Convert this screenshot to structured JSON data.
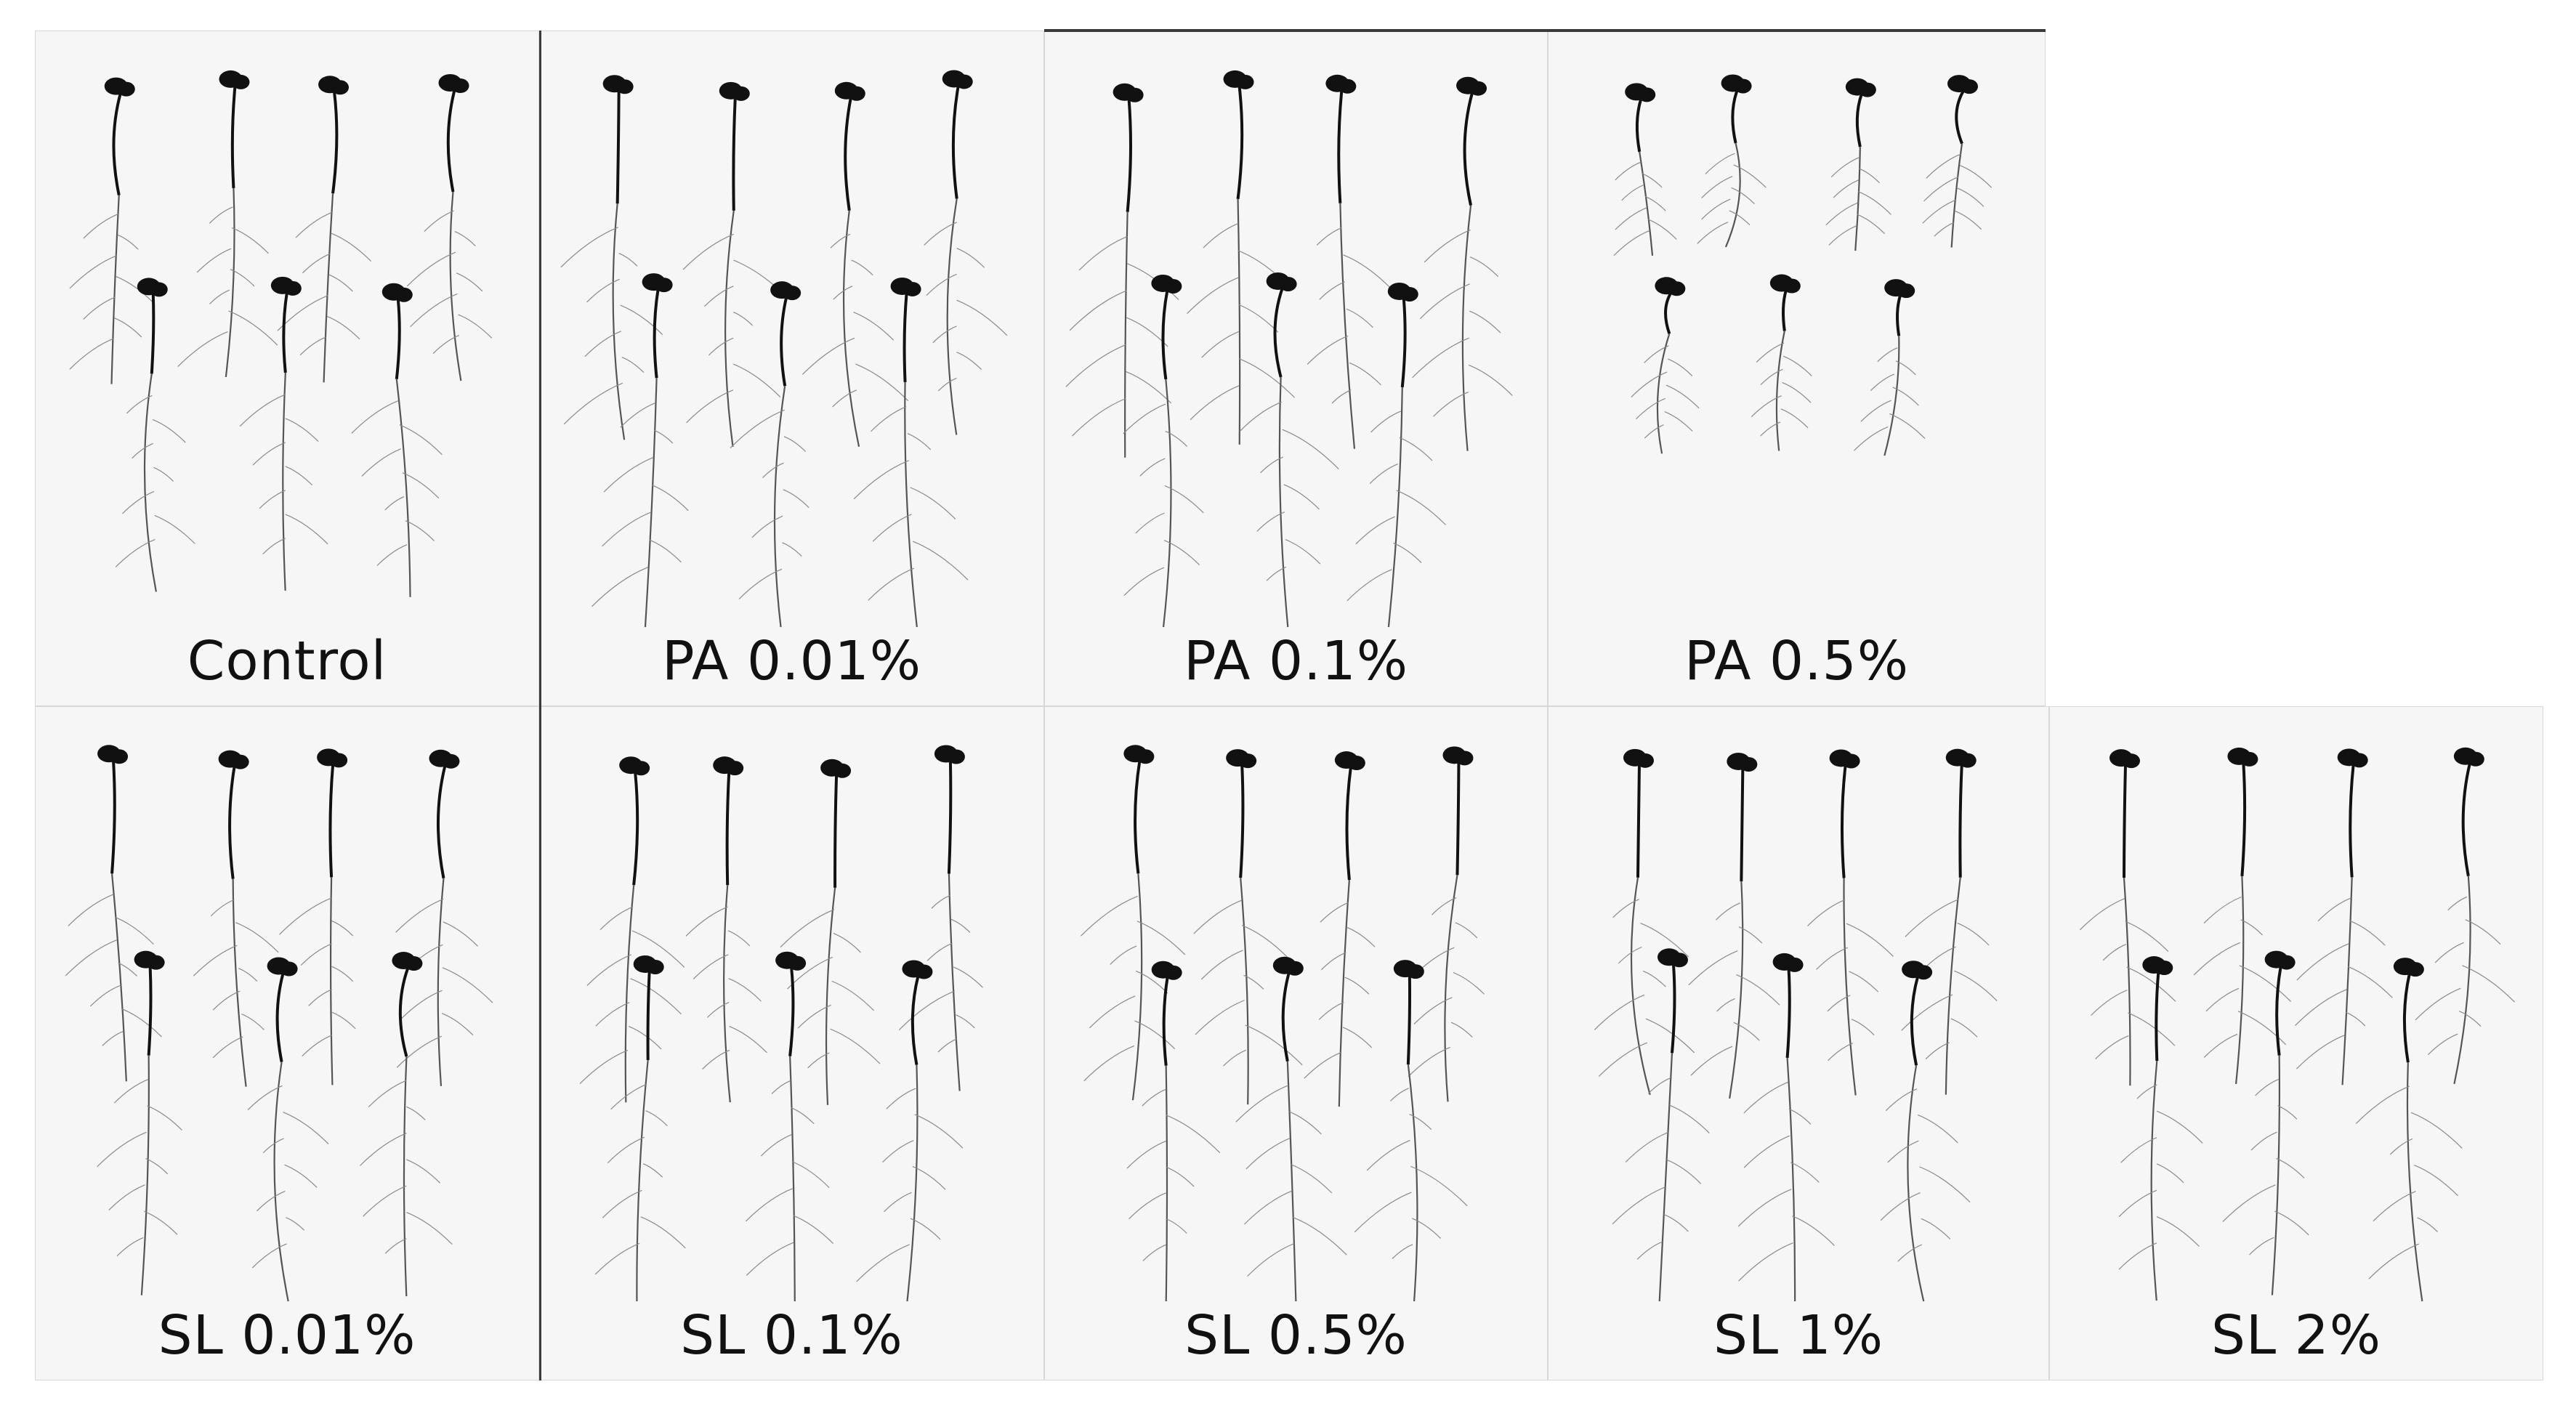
{
  "figure": {
    "rows": [
      {
        "panels": [
          {
            "id": "control",
            "label": "Control",
            "seedlings": 7
          },
          {
            "id": "pa-001",
            "label": "PA 0.01%",
            "seedlings": 7
          },
          {
            "id": "pa-01",
            "label": "PA 0.1%",
            "seedlings": 7
          },
          {
            "id": "pa-05",
            "label": "PA 0.5%",
            "seedlings": 7
          }
        ]
      },
      {
        "panels": [
          {
            "id": "sl-001",
            "label": "SL 0.01%",
            "seedlings": 7
          },
          {
            "id": "sl-01",
            "label": "SL 0.1%",
            "seedlings": 7
          },
          {
            "id": "sl-05",
            "label": "SL 0.5%",
            "seedlings": 7
          },
          {
            "id": "sl-1",
            "label": "SL 1%",
            "seedlings": 7
          },
          {
            "id": "sl-2",
            "label": "SL 2%",
            "seedlings": 7
          }
        ]
      }
    ],
    "colors": {
      "background": "#f6f6f6",
      "seedling": "#111111",
      "root": "#555555"
    }
  }
}
